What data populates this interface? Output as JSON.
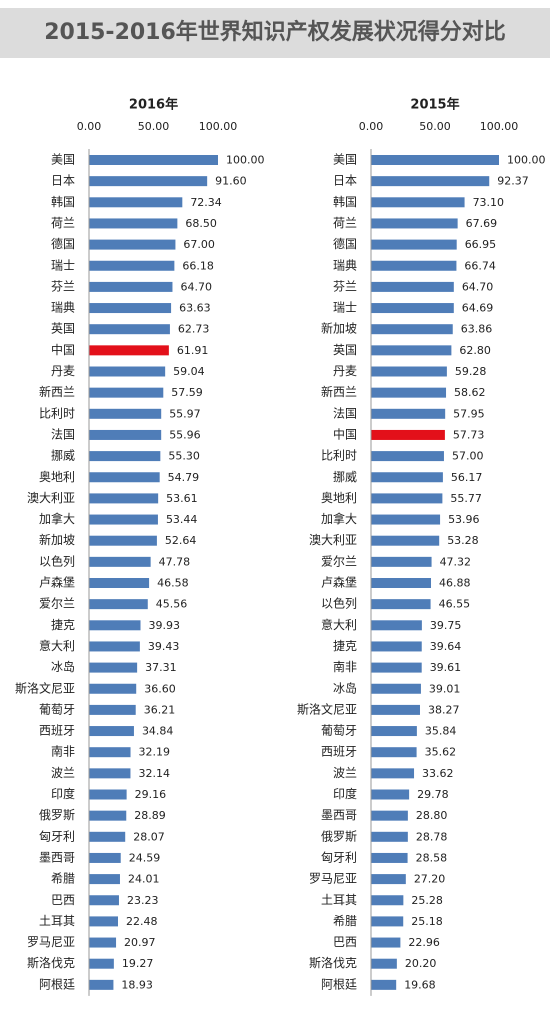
{
  "title": "2015-2016年世界知识产权发展状况得分对比",
  "chart_data": [
    {
      "type": "hbar",
      "title": "2016年",
      "categories": [
        "美国",
        "日本",
        "韩国",
        "荷兰",
        "德国",
        "瑞士",
        "芬兰",
        "瑞典",
        "英国",
        "中国",
        "丹麦",
        "新西兰",
        "比利时",
        "法国",
        "挪威",
        "奥地利",
        "澳大利亚",
        "加拿大",
        "新加坡",
        "以色列",
        "卢森堡",
        "爱尔兰",
        "捷克",
        "意大利",
        "冰岛",
        "斯洛文尼亚",
        "葡萄牙",
        "西班牙",
        "南非",
        "波兰",
        "印度",
        "俄罗斯",
        "匈牙利",
        "墨西哥",
        "希腊",
        "巴西",
        "土耳其",
        "罗马尼亚",
        "斯洛伐克",
        "阿根廷"
      ],
      "values": [
        100,
        91.6,
        72.34,
        68.5,
        67,
        66.18,
        64.7,
        63.63,
        62.73,
        61.91,
        59.04,
        57.59,
        55.97,
        55.96,
        55.3,
        54.79,
        53.61,
        53.44,
        52.64,
        47.78,
        46.58,
        45.56,
        39.93,
        39.43,
        37.31,
        36.6,
        36.21,
        34.84,
        32.19,
        32.14,
        29.16,
        28.89,
        28.07,
        24.59,
        24.01,
        23.23,
        22.48,
        20.97,
        19.27,
        18.93
      ],
      "value_labels": [
        "100.00",
        "91.60",
        "72.34",
        "68.50",
        "67.00",
        "66.18",
        "64.70",
        "63.63",
        "62.73",
        "61.91",
        "59.04",
        "57.59",
        "55.97",
        "55.96",
        "55.30",
        "54.79",
        "53.61",
        "53.44",
        "52.64",
        "47.78",
        "46.58",
        "45.56",
        "39.93",
        "39.43",
        "37.31",
        "36.60",
        "36.21",
        "34.84",
        "32.19",
        "32.14",
        "29.16",
        "28.89",
        "28.07",
        "24.59",
        "24.01",
        "23.23",
        "22.48",
        "20.97",
        "19.27",
        "18.93"
      ],
      "colors": [
        "#4f7db8",
        "#4f7db8",
        "#4f7db8",
        "#4f7db8",
        "#4f7db8",
        "#4f7db8",
        "#4f7db8",
        "#4f7db8",
        "#4f7db8",
        "#e3101a",
        "#4f7db8",
        "#4f7db8",
        "#4f7db8",
        "#4f7db8",
        "#4f7db8",
        "#4f7db8",
        "#4f7db8",
        "#4f7db8",
        "#4f7db8",
        "#4f7db8",
        "#4f7db8",
        "#4f7db8",
        "#4f7db8",
        "#4f7db8",
        "#4f7db8",
        "#4f7db8",
        "#4f7db8",
        "#4f7db8",
        "#4f7db8",
        "#4f7db8",
        "#4f7db8",
        "#4f7db8",
        "#4f7db8",
        "#4f7db8",
        "#4f7db8",
        "#4f7db8",
        "#4f7db8",
        "#4f7db8",
        "#4f7db8",
        "#4f7db8"
      ],
      "xlim": [
        0,
        100
      ],
      "xticks": [
        {
          "value": 0,
          "label": "0.00"
        },
        {
          "value": 50,
          "label": "50.00"
        },
        {
          "value": 100,
          "label": "100.00"
        }
      ]
    },
    {
      "type": "hbar",
      "title": "2015年",
      "categories": [
        "美国",
        "日本",
        "韩国",
        "荷兰",
        "德国",
        "瑞典",
        "芬兰",
        "瑞士",
        "新加坡",
        "英国",
        "丹麦",
        "新西兰",
        "法国",
        "中国",
        "比利时",
        "挪威",
        "奥地利",
        "加拿大",
        "澳大利亚",
        "爱尔兰",
        "卢森堡",
        "以色列",
        "意大利",
        "捷克",
        "南非",
        "冰岛",
        "斯洛文尼亚",
        "葡萄牙",
        "西班牙",
        "波兰",
        "印度",
        "墨西哥",
        "俄罗斯",
        "匈牙利",
        "罗马尼亚",
        "土耳其",
        "希腊",
        "巴西",
        "斯洛伐克",
        "阿根廷"
      ],
      "values": [
        100,
        92.37,
        73.1,
        67.69,
        66.95,
        66.74,
        64.7,
        64.69,
        63.86,
        62.8,
        59.28,
        58.62,
        57.95,
        57.73,
        57,
        56.17,
        55.77,
        53.96,
        53.28,
        47.32,
        46.88,
        46.55,
        39.75,
        39.64,
        39.61,
        39.01,
        38.27,
        35.84,
        35.62,
        33.62,
        29.78,
        28.8,
        28.78,
        28.58,
        27.2,
        25.28,
        25.18,
        22.96,
        20.2,
        19.68
      ],
      "value_labels": [
        "100.00",
        "92.37",
        "73.10",
        "67.69",
        "66.95",
        "66.74",
        "64.70",
        "64.69",
        "63.86",
        "62.80",
        "59.28",
        "58.62",
        "57.95",
        "57.73",
        "57.00",
        "56.17",
        "55.77",
        "53.96",
        "53.28",
        "47.32",
        "46.88",
        "46.55",
        "39.75",
        "39.64",
        "39.61",
        "39.01",
        "38.27",
        "35.84",
        "35.62",
        "33.62",
        "29.78",
        "28.80",
        "28.78",
        "28.58",
        "27.20",
        "25.28",
        "25.18",
        "22.96",
        "20.20",
        "19.68"
      ],
      "colors": [
        "#4f7db8",
        "#4f7db8",
        "#4f7db8",
        "#4f7db8",
        "#4f7db8",
        "#4f7db8",
        "#4f7db8",
        "#4f7db8",
        "#4f7db8",
        "#4f7db8",
        "#4f7db8",
        "#4f7db8",
        "#4f7db8",
        "#e3101a",
        "#4f7db8",
        "#4f7db8",
        "#4f7db8",
        "#4f7db8",
        "#4f7db8",
        "#4f7db8",
        "#4f7db8",
        "#4f7db8",
        "#4f7db8",
        "#4f7db8",
        "#4f7db8",
        "#4f7db8",
        "#4f7db8",
        "#4f7db8",
        "#4f7db8",
        "#4f7db8",
        "#4f7db8",
        "#4f7db8",
        "#4f7db8",
        "#4f7db8",
        "#4f7db8",
        "#4f7db8",
        "#4f7db8",
        "#4f7db8",
        "#4f7db8",
        "#4f7db8"
      ],
      "xlim": [
        0,
        100
      ],
      "xticks": [
        {
          "value": 0,
          "label": "0.00"
        },
        {
          "value": 50,
          "label": "50.00"
        },
        {
          "value": 100,
          "label": "100.00"
        }
      ]
    }
  ]
}
